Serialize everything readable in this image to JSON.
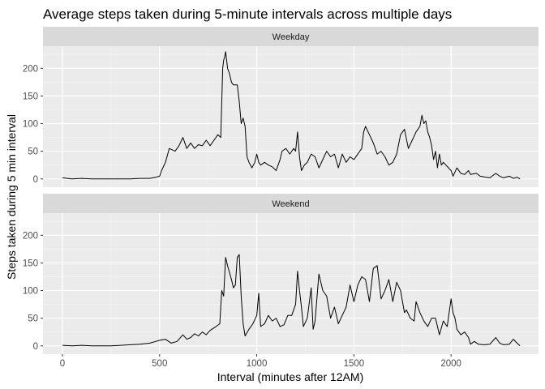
{
  "chart_data": {
    "type": "line",
    "title": "Average steps taken during 5-minute intervals across multiple days",
    "xlabel": "Interval (minutes after 12AM)",
    "ylabel": "Steps taken during 5 min interval",
    "xlim": [
      -100,
      2450
    ],
    "ylim": [
      -15,
      240
    ],
    "x_ticks": [
      0,
      500,
      1000,
      1500,
      2000
    ],
    "y_ticks": [
      0,
      50,
      100,
      150,
      200
    ],
    "grid": true,
    "panels": [
      {
        "name": "Weekday",
        "points": [
          [
            0,
            2
          ],
          [
            25,
            1
          ],
          [
            50,
            0
          ],
          [
            100,
            1
          ],
          [
            150,
            0
          ],
          [
            200,
            0
          ],
          [
            250,
            0
          ],
          [
            300,
            0
          ],
          [
            350,
            0
          ],
          [
            400,
            1
          ],
          [
            450,
            1
          ],
          [
            480,
            3
          ],
          [
            500,
            5
          ],
          [
            510,
            15
          ],
          [
            530,
            30
          ],
          [
            550,
            55
          ],
          [
            580,
            50
          ],
          [
            600,
            60
          ],
          [
            620,
            75
          ],
          [
            640,
            55
          ],
          [
            660,
            65
          ],
          [
            680,
            55
          ],
          [
            700,
            62
          ],
          [
            720,
            60
          ],
          [
            740,
            70
          ],
          [
            760,
            60
          ],
          [
            780,
            70
          ],
          [
            800,
            80
          ],
          [
            815,
            75
          ],
          [
            825,
            200
          ],
          [
            830,
            215
          ],
          [
            835,
            220
          ],
          [
            840,
            230
          ],
          [
            845,
            215
          ],
          [
            850,
            200
          ],
          [
            860,
            190
          ],
          [
            870,
            175
          ],
          [
            880,
            170
          ],
          [
            900,
            170
          ],
          [
            910,
            140
          ],
          [
            920,
            100
          ],
          [
            930,
            110
          ],
          [
            940,
            95
          ],
          [
            950,
            40
          ],
          [
            960,
            30
          ],
          [
            975,
            20
          ],
          [
            990,
            30
          ],
          [
            1000,
            45
          ],
          [
            1010,
            30
          ],
          [
            1020,
            25
          ],
          [
            1040,
            30
          ],
          [
            1060,
            25
          ],
          [
            1080,
            22
          ],
          [
            1100,
            15
          ],
          [
            1110,
            25
          ],
          [
            1120,
            35
          ],
          [
            1130,
            50
          ],
          [
            1150,
            55
          ],
          [
            1170,
            45
          ],
          [
            1190,
            55
          ],
          [
            1200,
            50
          ],
          [
            1210,
            85
          ],
          [
            1220,
            40
          ],
          [
            1230,
            15
          ],
          [
            1245,
            25
          ],
          [
            1260,
            30
          ],
          [
            1280,
            45
          ],
          [
            1300,
            40
          ],
          [
            1320,
            20
          ],
          [
            1340,
            35
          ],
          [
            1360,
            50
          ],
          [
            1380,
            40
          ],
          [
            1400,
            45
          ],
          [
            1420,
            20
          ],
          [
            1440,
            45
          ],
          [
            1460,
            30
          ],
          [
            1480,
            40
          ],
          [
            1500,
            35
          ],
          [
            1520,
            45
          ],
          [
            1540,
            55
          ],
          [
            1550,
            85
          ],
          [
            1560,
            95
          ],
          [
            1580,
            80
          ],
          [
            1600,
            65
          ],
          [
            1620,
            45
          ],
          [
            1640,
            50
          ],
          [
            1660,
            40
          ],
          [
            1680,
            25
          ],
          [
            1700,
            30
          ],
          [
            1720,
            45
          ],
          [
            1740,
            80
          ],
          [
            1760,
            90
          ],
          [
            1780,
            55
          ],
          [
            1800,
            70
          ],
          [
            1820,
            85
          ],
          [
            1840,
            95
          ],
          [
            1850,
            115
          ],
          [
            1860,
            100
          ],
          [
            1870,
            105
          ],
          [
            1880,
            85
          ],
          [
            1890,
            75
          ],
          [
            1900,
            60
          ],
          [
            1910,
            35
          ],
          [
            1920,
            50
          ],
          [
            1930,
            20
          ],
          [
            1940,
            45
          ],
          [
            1950,
            25
          ],
          [
            1960,
            30
          ],
          [
            2000,
            15
          ],
          [
            2010,
            5
          ],
          [
            2030,
            20
          ],
          [
            2050,
            10
          ],
          [
            2070,
            8
          ],
          [
            2090,
            15
          ],
          [
            2100,
            8
          ],
          [
            2130,
            10
          ],
          [
            2150,
            5
          ],
          [
            2180,
            3
          ],
          [
            2200,
            2
          ],
          [
            2230,
            10
          ],
          [
            2250,
            5
          ],
          [
            2270,
            2
          ],
          [
            2300,
            5
          ],
          [
            2320,
            1
          ],
          [
            2340,
            3
          ],
          [
            2355,
            0
          ]
        ]
      },
      {
        "name": "Weekend",
        "points": [
          [
            0,
            1
          ],
          [
            50,
            0
          ],
          [
            100,
            1
          ],
          [
            150,
            0
          ],
          [
            200,
            0
          ],
          [
            250,
            0
          ],
          [
            300,
            1
          ],
          [
            350,
            2
          ],
          [
            400,
            3
          ],
          [
            450,
            5
          ],
          [
            480,
            8
          ],
          [
            500,
            10
          ],
          [
            530,
            12
          ],
          [
            560,
            5
          ],
          [
            590,
            8
          ],
          [
            620,
            20
          ],
          [
            640,
            12
          ],
          [
            660,
            15
          ],
          [
            680,
            22
          ],
          [
            700,
            18
          ],
          [
            720,
            25
          ],
          [
            740,
            20
          ],
          [
            760,
            28
          ],
          [
            790,
            35
          ],
          [
            810,
            40
          ],
          [
            820,
            100
          ],
          [
            830,
            90
          ],
          [
            840,
            160
          ],
          [
            850,
            145
          ],
          [
            870,
            120
          ],
          [
            880,
            105
          ],
          [
            890,
            110
          ],
          [
            900,
            160
          ],
          [
            910,
            165
          ],
          [
            920,
            90
          ],
          [
            930,
            40
          ],
          [
            940,
            18
          ],
          [
            960,
            30
          ],
          [
            980,
            40
          ],
          [
            1000,
            55
          ],
          [
            1010,
            95
          ],
          [
            1020,
            35
          ],
          [
            1040,
            40
          ],
          [
            1060,
            55
          ],
          [
            1080,
            45
          ],
          [
            1100,
            50
          ],
          [
            1120,
            35
          ],
          [
            1140,
            38
          ],
          [
            1160,
            55
          ],
          [
            1180,
            55
          ],
          [
            1200,
            75
          ],
          [
            1210,
            135
          ],
          [
            1220,
            100
          ],
          [
            1230,
            70
          ],
          [
            1240,
            35
          ],
          [
            1260,
            50
          ],
          [
            1280,
            105
          ],
          [
            1290,
            30
          ],
          [
            1300,
            45
          ],
          [
            1320,
            130
          ],
          [
            1340,
            100
          ],
          [
            1360,
            90
          ],
          [
            1380,
            50
          ],
          [
            1400,
            70
          ],
          [
            1420,
            40
          ],
          [
            1440,
            55
          ],
          [
            1460,
            70
          ],
          [
            1480,
            110
          ],
          [
            1500,
            80
          ],
          [
            1520,
            110
          ],
          [
            1540,
            125
          ],
          [
            1560,
            120
          ],
          [
            1580,
            80
          ],
          [
            1590,
            110
          ],
          [
            1600,
            140
          ],
          [
            1620,
            145
          ],
          [
            1640,
            85
          ],
          [
            1660,
            100
          ],
          [
            1680,
            120
          ],
          [
            1700,
            80
          ],
          [
            1720,
            115
          ],
          [
            1740,
            100
          ],
          [
            1760,
            60
          ],
          [
            1770,
            65
          ],
          [
            1790,
            50
          ],
          [
            1810,
            45
          ],
          [
            1820,
            80
          ],
          [
            1840,
            60
          ],
          [
            1860,
            45
          ],
          [
            1880,
            35
          ],
          [
            1900,
            50
          ],
          [
            1920,
            50
          ],
          [
            1940,
            20
          ],
          [
            1960,
            45
          ],
          [
            1980,
            35
          ],
          [
            2000,
            85
          ],
          [
            2010,
            60
          ],
          [
            2020,
            50
          ],
          [
            2030,
            30
          ],
          [
            2050,
            20
          ],
          [
            2070,
            25
          ],
          [
            2090,
            15
          ],
          [
            2100,
            3
          ],
          [
            2120,
            8
          ],
          [
            2140,
            3
          ],
          [
            2170,
            2
          ],
          [
            2200,
            3
          ],
          [
            2230,
            15
          ],
          [
            2250,
            5
          ],
          [
            2270,
            2
          ],
          [
            2300,
            3
          ],
          [
            2320,
            12
          ],
          [
            2340,
            5
          ],
          [
            2355,
            0
          ]
        ]
      }
    ]
  }
}
